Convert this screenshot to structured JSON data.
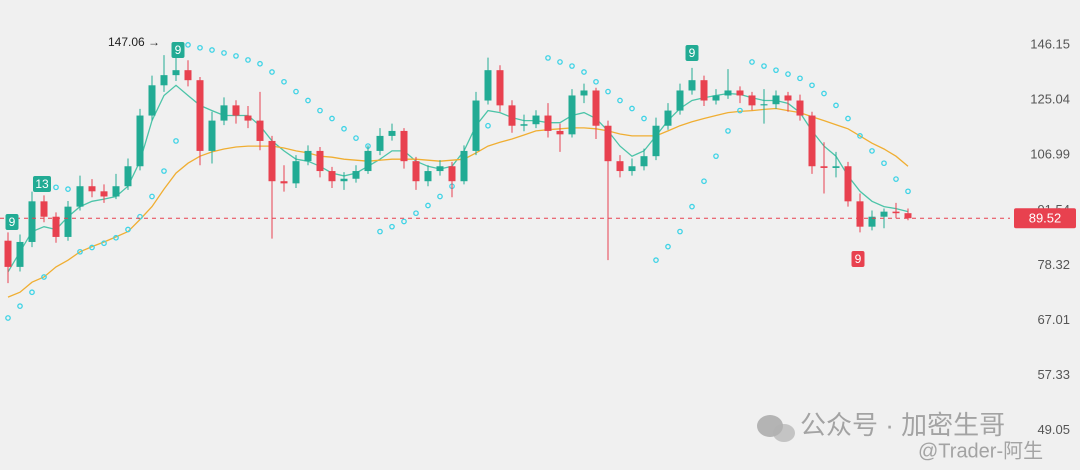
{
  "chart_data": {
    "type": "candlestick",
    "log_scale": true,
    "ylim": [
      43.9,
      166.0
    ],
    "yticks": [
      146.15,
      125.04,
      106.99,
      91.54,
      78.32,
      67.01,
      57.33,
      49.05
    ],
    "up_color": "#22ab94",
    "down_color": "#e8414f",
    "open": [
      84.0,
      78.0,
      83.7,
      93.9,
      89.9,
      84.9,
      92.5,
      98.0,
      96.6,
      95.2,
      98.0,
      103.7,
      119.7,
      130.4,
      134.2,
      136.1,
      132.3,
      108.3,
      118.0,
      123.2,
      119.7,
      118.0,
      111.4,
      99.4,
      98.8,
      105.2,
      108.3,
      102.3,
      99.4,
      100.1,
      102.3,
      108.3,
      113.0,
      114.6,
      105.2,
      99.4,
      102.3,
      103.7,
      99.4,
      108.3,
      124.9,
      136.1,
      123.2,
      116.3,
      116.8,
      119.7,
      114.6,
      113.5,
      126.7,
      128.5,
      116.3,
      105.2,
      102.3,
      103.7,
      106.7,
      116.3,
      121.4,
      128.5,
      132.3,
      124.9,
      126.7,
      128.5,
      126.7,
      123.2,
      123.6,
      126.7,
      124.9,
      119.7,
      103.7,
      103.2,
      103.7,
      93.9,
      87.4,
      89.9,
      91.2,
      90.8
    ],
    "high": [
      86.0,
      85.5,
      96.5,
      95.5,
      91.0,
      94.0,
      101.0,
      100.0,
      98.5,
      101.5,
      106.0,
      122.0,
      134.0,
      142.0,
      147.06,
      140.0,
      133.5,
      121.0,
      126.0,
      125.0,
      123.0,
      128.0,
      113.0,
      104.0,
      107.0,
      110.0,
      109.5,
      103.5,
      102.0,
      104.0,
      110.0,
      115.5,
      117.0,
      115.5,
      106.5,
      104.0,
      105.5,
      105.0,
      110.0,
      128.0,
      141.0,
      138.0,
      125.0,
      120.0,
      121.5,
      124.0,
      117.0,
      129.0,
      131.0,
      129.5,
      118.0,
      107.0,
      106.0,
      109.0,
      119.0,
      124.0,
      131.0,
      137.0,
      134.0,
      129.0,
      136.5,
      130.0,
      128.0,
      129.0,
      128.5,
      128.0,
      127.0,
      121.0,
      111.0,
      108.0,
      105.0,
      96.0,
      91.5,
      92.0,
      93.5,
      92.0
    ],
    "low": [
      74.5,
      77.0,
      82.5,
      88.5,
      83.5,
      84.0,
      91.5,
      95.0,
      93.5,
      94.5,
      97.0,
      102.5,
      118.0,
      128.0,
      132.0,
      130.0,
      104.0,
      104.5,
      116.5,
      117.0,
      115.5,
      108.5,
      84.5,
      96.5,
      97.5,
      104.0,
      100.5,
      97.5,
      97.0,
      99.0,
      101.5,
      107.0,
      111.5,
      103.0,
      97.0,
      98.0,
      101.0,
      95.0,
      98.5,
      107.0,
      123.5,
      121.0,
      114.0,
      114.5,
      115.5,
      112.5,
      108.0,
      112.5,
      124.0,
      112.0,
      79.5,
      100.5,
      101.0,
      102.5,
      105.5,
      115.0,
      120.0,
      127.0,
      123.0,
      123.5,
      125.5,
      124.0,
      121.5,
      117.0,
      122.0,
      121.0,
      118.0,
      101.5,
      96.0,
      100.5,
      92.5,
      86.0,
      86.5,
      87.0,
      89.5,
      89.0
    ],
    "close": [
      78.0,
      83.7,
      93.9,
      89.9,
      84.9,
      92.5,
      98.0,
      96.6,
      95.2,
      98.0,
      103.7,
      119.7,
      130.4,
      134.2,
      136.1,
      132.3,
      108.3,
      118.0,
      123.2,
      119.7,
      118.0,
      111.4,
      99.4,
      98.8,
      105.2,
      108.3,
      102.3,
      99.4,
      100.1,
      102.3,
      108.3,
      113.0,
      114.6,
      105.2,
      99.4,
      102.3,
      103.7,
      99.4,
      108.3,
      124.9,
      136.1,
      123.2,
      116.3,
      116.8,
      119.7,
      114.6,
      113.5,
      126.7,
      128.5,
      116.3,
      105.2,
      102.3,
      103.7,
      106.7,
      116.3,
      121.4,
      128.5,
      132.3,
      124.9,
      126.7,
      128.5,
      126.7,
      123.2,
      123.6,
      126.7,
      124.9,
      119.7,
      103.7,
      103.2,
      103.7,
      93.9,
      87.4,
      89.9,
      91.2,
      90.8,
      89.52
    ],
    "lines": [
      {
        "color": "#4cc4a8",
        "values": [
          76.9,
          81.4,
          86.2,
          87.4,
          86.7,
          89.9,
          92.5,
          93.9,
          94.5,
          95.2,
          98.0,
          105.2,
          118.0,
          126.7,
          130.4,
          126.7,
          123.2,
          121.4,
          119.7,
          119.7,
          119.7,
          116.3,
          111.4,
          108.3,
          105.8,
          105.2,
          103.7,
          101.7,
          100.9,
          101.7,
          103.7,
          105.8,
          108.3,
          108.3,
          105.2,
          103.7,
          102.9,
          103.7,
          108.3,
          116.3,
          121.4,
          120.7,
          119.0,
          118.0,
          118.0,
          117.3,
          117.3,
          119.7,
          120.7,
          118.7,
          114.6,
          109.8,
          106.7,
          108.3,
          113.0,
          118.0,
          122.1,
          124.9,
          125.9,
          126.7,
          127.4,
          127.1,
          125.9,
          124.9,
          124.9,
          123.9,
          120.7,
          114.6,
          109.8,
          106.7,
          100.9,
          96.6,
          93.9,
          92.5,
          92.0,
          91.2
        ]
      },
      {
        "color": "#f0ae32",
        "values": [
          71.6,
          72.6,
          74.7,
          75.8,
          78.0,
          79.5,
          81.4,
          82.6,
          83.7,
          84.9,
          86.2,
          89.2,
          92.5,
          97.2,
          101.7,
          104.6,
          106.7,
          108.0,
          108.9,
          109.5,
          109.8,
          109.8,
          109.8,
          109.2,
          108.3,
          107.7,
          106.7,
          106.4,
          105.8,
          105.5,
          105.2,
          105.5,
          105.8,
          105.8,
          105.8,
          105.5,
          105.2,
          105.5,
          105.8,
          107.7,
          109.8,
          111.0,
          112.0,
          113.3,
          114.6,
          115.0,
          115.3,
          115.6,
          115.6,
          115.3,
          114.6,
          113.6,
          113.0,
          113.0,
          113.0,
          114.6,
          116.3,
          117.6,
          118.7,
          119.7,
          120.7,
          121.1,
          121.4,
          121.8,
          122.1,
          121.4,
          120.7,
          119.3,
          118.0,
          116.6,
          115.3,
          113.0,
          110.7,
          108.9,
          106.7,
          103.7
        ]
      }
    ],
    "sar": {
      "color": "#3fd3e6",
      "values": [
        67.5,
        69.8,
        72.6,
        75.8,
        97.7,
        97.2,
        81.4,
        82.4,
        83.4,
        84.7,
        86.7,
        89.9,
        95.2,
        102.3,
        111.4,
        146.2,
        145.0,
        144.1,
        142.9,
        141.7,
        140.1,
        138.6,
        135.4,
        131.7,
        128.1,
        124.9,
        121.4,
        118.7,
        115.3,
        112.3,
        109.8,
        86.2,
        87.4,
        88.7,
        90.8,
        92.8,
        95.2,
        98.0,
        103.7,
        109.8,
        116.3,
        null,
        null,
        null,
        null,
        140.9,
        139.3,
        137.7,
        135.4,
        131.7,
        128.1,
        124.9,
        122.1,
        118.7,
        79.5,
        82.6,
        86.2,
        92.5,
        99.4,
        106.7,
        114.6,
        121.4,
        139.3,
        137.7,
        136.1,
        134.6,
        133.0,
        130.4,
        127.4,
        123.2,
        118.7,
        113.0,
        108.3,
        104.6,
        100.0,
        96.6
      ]
    },
    "last_price": 89.52,
    "last_price_color": "#e8414f",
    "annotations": [
      {
        "text": "147.06 →",
        "color": "#222222"
      },
      {
        "text": "9",
        "color": "#22ab94"
      },
      {
        "text": "13",
        "color": "#22ab94"
      },
      {
        "text": "9",
        "color": "#22ab94"
      },
      {
        "text": "9",
        "color": "#22ab94"
      },
      {
        "text": "9",
        "color": "#e8414f"
      }
    ],
    "watermark": [
      "公众号 · 加密生哥",
      "@Trader-阿生"
    ]
  }
}
